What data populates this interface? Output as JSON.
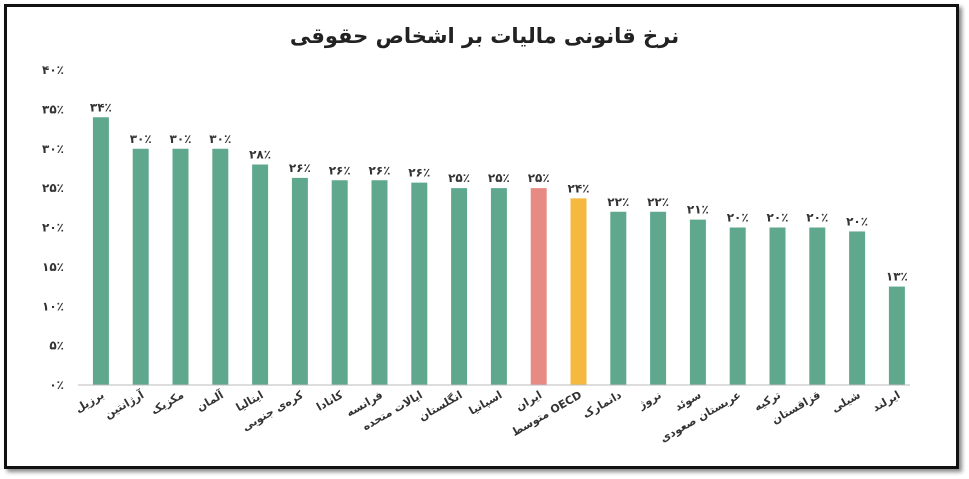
{
  "chart_data": {
    "type": "bar",
    "title": "نرخ قانونی مالیات بر اشخاص حقوقی",
    "xlabel": "",
    "ylabel": "",
    "ylim": [
      0,
      40
    ],
    "yticks": [
      "۰٪",
      "۵٪",
      "۱۰٪",
      "۱۵٪",
      "۲۰٪",
      "۲۵٪",
      "۳۰٪",
      "۳۵٪",
      "۴۰٪"
    ],
    "grid": false,
    "categories": [
      "برزیل",
      "آرژانتین",
      "مکزیک",
      "آلمان",
      "ایتالیا",
      "کره‌ی جنوبی",
      "کانادا",
      "فرانسه",
      "ایالات متحده",
      "انگلستان",
      "اسپانیا",
      "ایران",
      "متوسط OECD",
      "دانمارک",
      "نروژ",
      "سوئد",
      "عربستان صعودی",
      "ترکیه",
      "قزاقستان",
      "شیلی",
      "ایرلند"
    ],
    "values": [
      34,
      30,
      30,
      30,
      28,
      26.3,
      26,
      26,
      25.7,
      25,
      25,
      25,
      23.7,
      22,
      22,
      21,
      20,
      20,
      20,
      19.5,
      12.5
    ],
    "labels": [
      "۳۴٪",
      "۳۰٪",
      "۳۰٪",
      "۳۰٪",
      "۲۸٪",
      "۲۶٪",
      "۲۶٪",
      "۲۶٪",
      "۲۶٪",
      "۲۵٪",
      "۲۵٪",
      "۲۵٪",
      "۲۴٪",
      "۲۲٪",
      "۲۲٪",
      "۲۱٪",
      "۲۰٪",
      "۲۰٪",
      "۲۰٪",
      "۲۰٪",
      "۱۳٪"
    ],
    "colors": [
      "#5fa88e",
      "#5fa88e",
      "#5fa88e",
      "#5fa88e",
      "#5fa88e",
      "#5fa88e",
      "#5fa88e",
      "#5fa88e",
      "#5fa88e",
      "#5fa88e",
      "#5fa88e",
      "#e88a84",
      "#f6b940",
      "#5fa88e",
      "#5fa88e",
      "#5fa88e",
      "#5fa88e",
      "#5fa88e",
      "#5fa88e",
      "#5fa88e",
      "#5fa88e"
    ]
  }
}
